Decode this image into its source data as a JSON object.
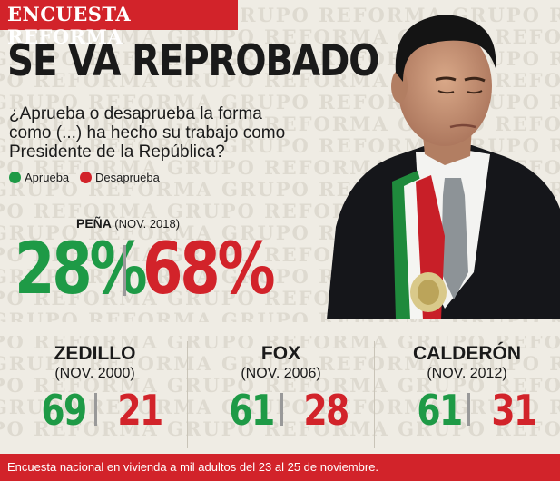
{
  "header": {
    "label": "ENCUESTA REFORMA"
  },
  "title": "SE VA REPROBADO",
  "question": "¿Aprueba o desaprueba la forma como (...) ha hecho su trabajo como Presidente de la República?",
  "watermark_text": "GRUPO REFORMA",
  "colors": {
    "aprueba": "#1e9a46",
    "desaprueba": "#d2232a",
    "brand": "#d2232a"
  },
  "legend": [
    {
      "label": "Aprueba",
      "color": "#1e9a46"
    },
    {
      "label": "Desaprueba",
      "color": "#d2232a"
    }
  ],
  "chart_data": {
    "type": "table",
    "series_names": [
      "Aprueba",
      "Desaprueba"
    ],
    "featured": {
      "name": "PEÑA",
      "date": "(NOV. 2018)",
      "aprueba": "28%",
      "desaprueba": "68%",
      "values": [
        28,
        68
      ]
    },
    "rows": [
      {
        "name": "ZEDILLO",
        "date": "(NOV. 2000)",
        "aprueba": "69",
        "desaprueba": "21",
        "values": [
          69,
          21
        ]
      },
      {
        "name": "FOX",
        "date": "(NOV. 2006)",
        "aprueba": "61",
        "desaprueba": "28",
        "values": [
          61,
          28
        ]
      },
      {
        "name": "CALDERÓN",
        "date": "(NOV. 2012)",
        "aprueba": "61",
        "desaprueba": "31",
        "values": [
          61,
          31
        ]
      }
    ]
  },
  "footer": {
    "note": "Encuesta nacional en vivienda a mil adultos del 23 al 25 de noviembre."
  }
}
